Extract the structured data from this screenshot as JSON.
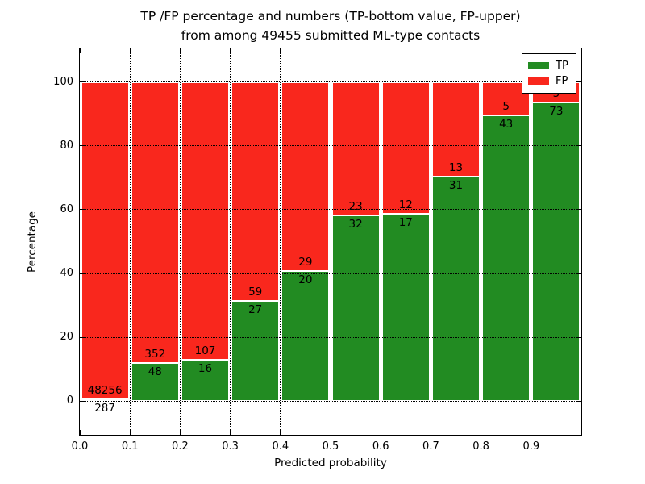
{
  "title": {
    "line1": "TP /FP percentage and numbers (TP-bottom value, FP-upper)",
    "line2": "from among 49455 submitted ML-type contacts"
  },
  "chart_data": {
    "type": "bar",
    "stacked": true,
    "title": "TP /FP percentage and numbers (TP-bottom value, FP-upper) from among 49455 submitted ML-type contacts",
    "xlabel": "Predicted probability",
    "ylabel": "Percentage",
    "xlim": [
      0,
      1.0
    ],
    "ylim": [
      -10.5,
      110.5
    ],
    "x_tick_values": [
      0.0,
      0.1,
      0.2,
      0.3,
      0.4,
      0.5,
      0.6,
      0.7,
      0.8,
      0.9
    ],
    "x_tick_labels": [
      "0.0",
      "0.1",
      "0.2",
      "0.3",
      "0.4",
      "0.5",
      "0.6",
      "0.7",
      "0.8",
      "0.9"
    ],
    "y_tick_values": [
      0,
      20,
      40,
      60,
      80,
      100
    ],
    "y_tick_labels": [
      "0",
      "20",
      "40",
      "60",
      "80",
      "100"
    ],
    "grid": "dotted black on both axes, drawn above bars",
    "bin_width": 0.1,
    "categories": [
      "0.0-0.1",
      "0.1-0.2",
      "0.2-0.3",
      "0.3-0.4",
      "0.4-0.5",
      "0.5-0.6",
      "0.6-0.7",
      "0.7-0.8",
      "0.8-0.9",
      "0.9-1.0"
    ],
    "series": [
      {
        "name": "TP",
        "color": "#228b22",
        "counts": [
          287,
          48,
          16,
          27,
          20,
          32,
          17,
          31,
          43,
          73
        ]
      },
      {
        "name": "FP",
        "color": "#f9271d",
        "counts": [
          48256,
          352,
          107,
          59,
          29,
          23,
          12,
          13,
          5,
          5
        ]
      }
    ],
    "total_contacts": 49455,
    "note": "bars show TP percentage = TP/(TP+FP)*100 stacked with FP to 100%; count labels printed on bars (TP bottom value, FP upper)",
    "legend": {
      "position": "upper right"
    }
  }
}
